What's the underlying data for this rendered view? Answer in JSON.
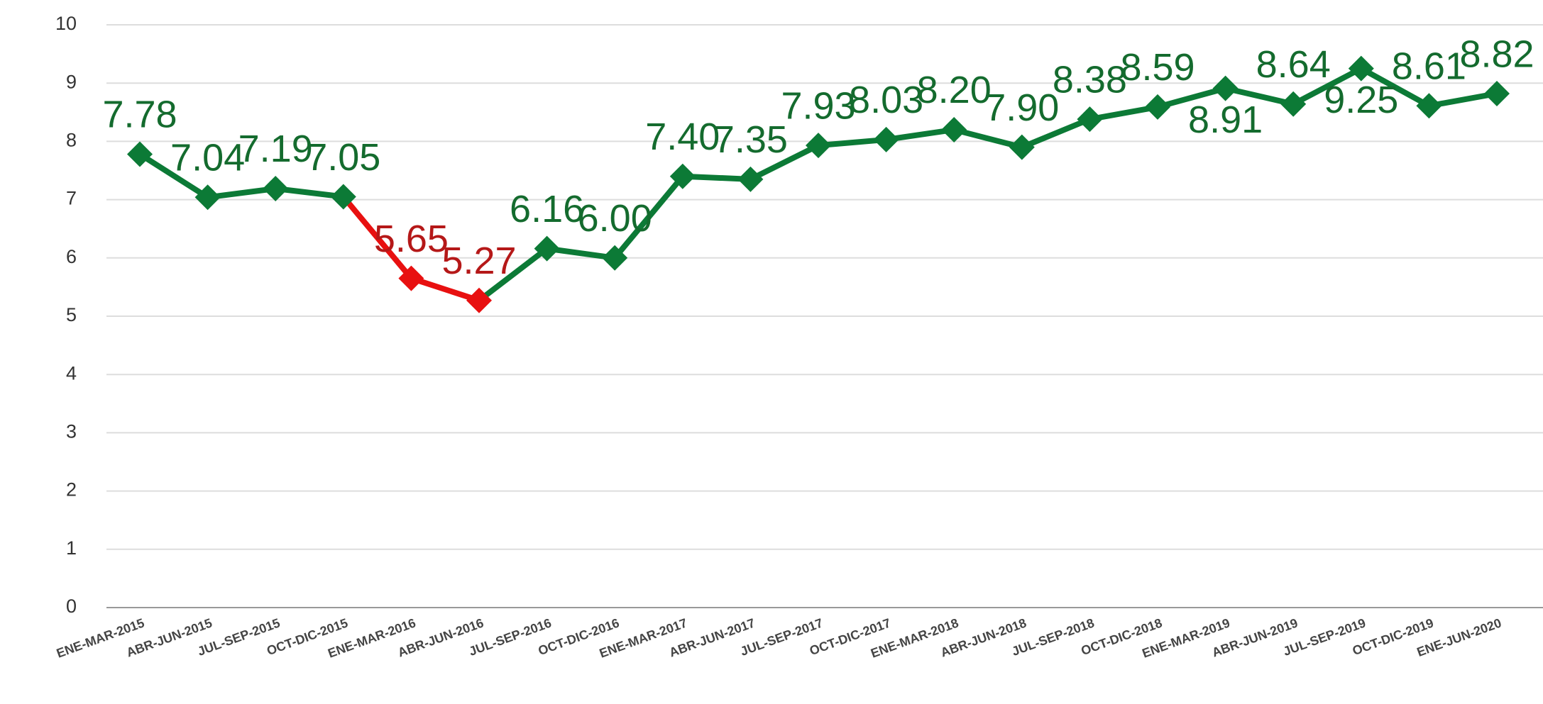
{
  "chart_data": {
    "type": "line",
    "categories": [
      "ENE-MAR-2015",
      "ABR-JUN-2015",
      "JUL-SEP-2015",
      "OCT-DIC-2015",
      "ENE-MAR-2016",
      "ABR-JUN-2016",
      "JUL-SEP-2016",
      "OCT-DIC-2016",
      "ENE-MAR-2017",
      "ABR-JUN-2017",
      "JUL-SEP-2017",
      "OCT-DIC-2017",
      "ENE-MAR-2018",
      "ABR-JUN-2018",
      "JUL-SEP-2018",
      "OCT-DIC-2018",
      "ENE-MAR-2019",
      "ABR-JUN-2019",
      "JUL-SEP-2019",
      "OCT-DIC-2019",
      "ENE-JUN-2020"
    ],
    "series": [
      {
        "color": "#0c7a36",
        "values": [
          7.78,
          7.04,
          7.19,
          7.05,
          5.65,
          5.27,
          6.16,
          6.0,
          7.4,
          7.35,
          7.93,
          8.03,
          8.2,
          7.9,
          8.38,
          8.59,
          8.91,
          8.64,
          9.25,
          8.61,
          8.82
        ],
        "value_labels": [
          "7.78",
          "7.04",
          "7.19",
          "7.05",
          "5.65",
          "5.27",
          "6.16",
          "6.00",
          "7.40",
          "7.35",
          "7.93",
          "8.03",
          "8.20",
          "7.90",
          "8.38",
          "8.59",
          "8.91",
          "8.64",
          "9.25",
          "8.61",
          "8.82"
        ],
        "point_colors": [
          "#0c7a36",
          "#0c7a36",
          "#0c7a36",
          "#0c7a36",
          "#e81010",
          "#e81010",
          "#0c7a36",
          "#0c7a36",
          "#0c7a36",
          "#0c7a36",
          "#0c7a36",
          "#0c7a36",
          "#0c7a36",
          "#0c7a36",
          "#0c7a36",
          "#0c7a36",
          "#0c7a36",
          "#0c7a36",
          "#0c7a36",
          "#0c7a36",
          "#0c7a36"
        ]
      }
    ],
    "ylim": [
      0,
      10
    ],
    "yticks": [
      0,
      1,
      2,
      3,
      4,
      5,
      6,
      7,
      8,
      9,
      10
    ],
    "grid": true
  }
}
